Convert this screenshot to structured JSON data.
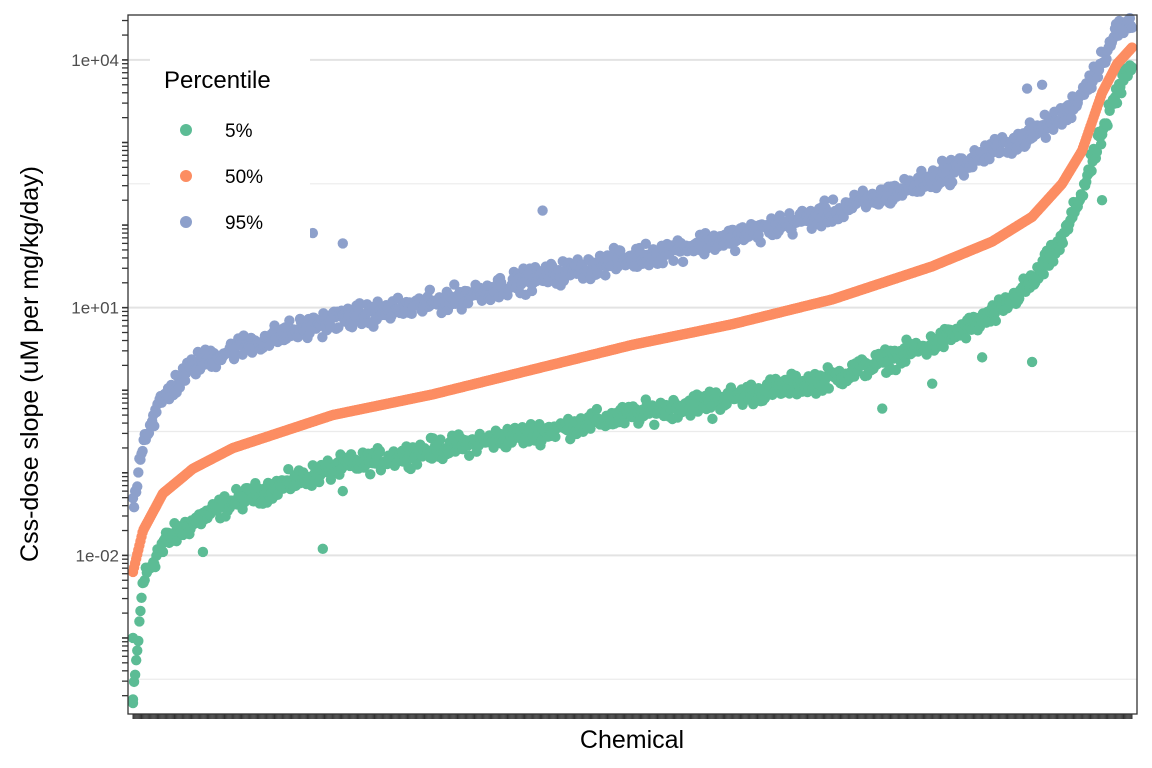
{
  "chart_data": {
    "type": "scatter",
    "title": "",
    "xlabel": "Chemical",
    "ylabel": "Css-dose slope (uM per mg/kg/day)",
    "y_scale": "log10",
    "ylim": [
      0.00012,
      35000
    ],
    "y_ticks": [
      0.01,
      10,
      10000
    ],
    "y_tick_labels": [
      "1e-02",
      "1e+01",
      "1e+04"
    ],
    "x_ticks": "one tick per chemical, unlabeled",
    "grid": "horizontal major and minor gridlines",
    "legend_position": "top-left inside plot",
    "legend": {
      "title": "Percentile",
      "entries": [
        "5%",
        "50%",
        "95%"
      ]
    },
    "n_chemicals": 940,
    "series": [
      {
        "name": "5%",
        "color": "#5cbc95",
        "shape": "upper, curve-following, with scatter about the median",
        "curve": {
          "x_fraction": [
            0,
            0.01,
            0.03,
            0.06,
            0.1,
            0.2,
            0.3,
            0.4,
            0.5,
            0.6,
            0.7,
            0.8,
            0.86,
            0.9,
            0.93,
            0.95,
            0.97,
            0.985,
            1
          ],
          "log10_y": [
            -3.8,
            -2.3,
            -1.85,
            -1.6,
            -1.35,
            -0.95,
            -0.72,
            -0.52,
            -0.3,
            -0.08,
            0.15,
            0.55,
            0.9,
            1.3,
            1.8,
            2.4,
            3.1,
            3.6,
            3.95
          ]
        },
        "outliers": [
          {
            "x_fraction": 0.03,
            "value": 0.011
          },
          {
            "x_fraction": 0.07,
            "value": 0.011
          },
          {
            "x_fraction": 0.19,
            "value": 0.012
          },
          {
            "x_fraction": 0.21,
            "value": 0.06
          },
          {
            "x_fraction": 0.58,
            "value": 0.45
          },
          {
            "x_fraction": 0.75,
            "value": 0.6
          },
          {
            "x_fraction": 0.8,
            "value": 1.2
          },
          {
            "x_fraction": 0.85,
            "value": 2.5
          },
          {
            "x_fraction": 0.9,
            "value": 2.2
          },
          {
            "x_fraction": 0.97,
            "value": 200
          },
          {
            "x_fraction": 0.985,
            "value": 3000
          },
          {
            "x_fraction": 0.99,
            "value": 8000
          },
          {
            "x_fraction": 0.0,
            "value": 0.00018
          },
          {
            "x_fraction": 0.0,
            "value": 0.001
          }
        ]
      },
      {
        "name": "50%",
        "color": "#fc8d62",
        "shape": "smooth monotone curve",
        "curve": {
          "x_fraction": [
            0,
            0.01,
            0.03,
            0.06,
            0.1,
            0.2,
            0.3,
            0.4,
            0.5,
            0.6,
            0.7,
            0.8,
            0.86,
            0.9,
            0.93,
            0.95,
            0.97,
            0.985,
            1
          ],
          "log10_y": [
            -2.2,
            -1.7,
            -1.25,
            -0.95,
            -0.7,
            -0.3,
            -0.05,
            0.25,
            0.55,
            0.8,
            1.1,
            1.5,
            1.8,
            2.1,
            2.5,
            2.9,
            3.6,
            3.95,
            4.15
          ]
        },
        "outliers": []
      },
      {
        "name": "95%",
        "color": "#8da0cb",
        "shape": "lower, curve-following, with scatter about the median",
        "curve": {
          "x_fraction": [
            0,
            0.01,
            0.03,
            0.06,
            0.1,
            0.2,
            0.3,
            0.4,
            0.5,
            0.6,
            0.7,
            0.8,
            0.86,
            0.9,
            0.93,
            0.95,
            0.97,
            0.985,
            1
          ],
          "log10_y": [
            -1.4,
            -0.6,
            -0.1,
            0.3,
            0.5,
            0.85,
            1.05,
            1.35,
            1.6,
            1.85,
            2.15,
            2.55,
            2.9,
            3.1,
            3.3,
            3.6,
            4.0,
            4.35,
            4.45
          ]
        },
        "outliers": [
          {
            "x_fraction": 0.18,
            "value": 80
          },
          {
            "x_fraction": 0.21,
            "value": 60
          },
          {
            "x_fraction": 0.41,
            "value": 150
          },
          {
            "x_fraction": 0.81,
            "value": 600
          },
          {
            "x_fraction": 0.91,
            "value": 5000
          },
          {
            "x_fraction": 0.895,
            "value": 4500
          },
          {
            "x_fraction": 0.99,
            "value": 23000
          }
        ]
      }
    ]
  }
}
